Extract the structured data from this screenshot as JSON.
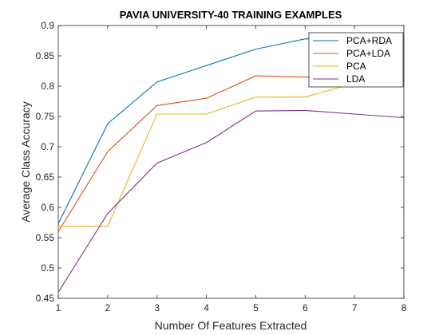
{
  "chart_data": {
    "type": "line",
    "title": "PAVIA UNIVERSITY-40 TRAINING EXAMPLES",
    "xlabel": "Number Of Features Extracted",
    "ylabel": "Average Class Accuracy",
    "x": [
      1,
      2,
      3,
      4,
      5,
      6,
      7,
      8
    ],
    "xlim": [
      1,
      8
    ],
    "ylim": [
      0.45,
      0.9
    ],
    "xticks": [
      "1",
      "2",
      "3",
      "4",
      "5",
      "6",
      "7",
      "8"
    ],
    "yticks": [
      "0.45",
      "0.5",
      "0.55",
      "0.6",
      "0.65",
      "0.7",
      "0.75",
      "0.8",
      "0.85",
      "0.9"
    ],
    "grid": false,
    "legend_position": "top-right",
    "series": [
      {
        "name": "PCA+RDA",
        "color": "#0072BD",
        "values": [
          0.573,
          0.738,
          0.807,
          0.834,
          0.861,
          0.878,
          0.876,
          0.876
        ]
      },
      {
        "name": "PCA+LDA",
        "color": "#D95319",
        "values": [
          0.56,
          0.692,
          0.768,
          0.78,
          0.817,
          0.815,
          0.814,
          0.8
        ]
      },
      {
        "name": "PCA",
        "color": "#EDB120",
        "values": [
          0.569,
          0.569,
          0.754,
          0.754,
          0.782,
          0.782,
          0.805,
          0.805
        ]
      },
      {
        "name": "LDA",
        "color": "#7E2F8E",
        "values": [
          0.46,
          0.59,
          0.673,
          0.707,
          0.759,
          0.76,
          0.754,
          0.748
        ]
      }
    ]
  }
}
